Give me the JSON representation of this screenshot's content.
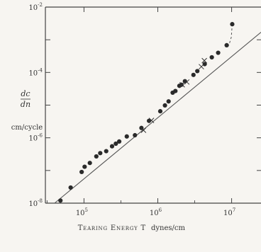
{
  "chart_data": {
    "type": "scatter",
    "x_scale": "log",
    "y_scale": "log",
    "xlim": [
      30000,
      25000000
    ],
    "ylim": [
      1e-08,
      0.01
    ],
    "x_ticks": [
      {
        "value": 100000,
        "base": "10",
        "exp": "5"
      },
      {
        "value": 1000000,
        "base": "10",
        "exp": "6"
      },
      {
        "value": 10000000,
        "base": "10",
        "exp": "7"
      }
    ],
    "y_ticks": [
      {
        "value": 0.01,
        "base": "10",
        "exp": "-2"
      },
      {
        "value": 0.0001,
        "base": "10",
        "exp": "-4"
      },
      {
        "value": 1e-06,
        "base": "10",
        "exp": "-6"
      },
      {
        "value": 1e-08,
        "base": "10",
        "exp": "-8"
      }
    ],
    "xlabel": "Tearing Energy T",
    "xlabel_units": "dynes/cm",
    "ylabel_top": "dc",
    "ylabel_bottom": "dn",
    "ylabel_units": "cm/cycle",
    "series": [
      {
        "marker": "filled-circle",
        "points": [
          [
            48000,
            1.2e-08
          ],
          [
            66000,
            3e-08
          ],
          [
            93000,
            9e-08
          ],
          [
            102000,
            1.3e-07
          ],
          [
            120000,
            1.7e-07
          ],
          [
            147000,
            2.7e-07
          ],
          [
            166000,
            3.4e-07
          ],
          [
            200000,
            3.9e-07
          ],
          [
            240000,
            5.5e-07
          ],
          [
            270000,
            6.6e-07
          ],
          [
            300000,
            7.7e-07
          ],
          [
            380000,
            1.1e-06
          ],
          [
            490000,
            1.2e-06
          ],
          [
            600000,
            2e-06
          ],
          [
            760000,
            3.3e-06
          ],
          [
            1080000,
            6.5e-06
          ],
          [
            1250000,
            9.8e-06
          ],
          [
            1400000,
            1.3e-05
          ],
          [
            1590000,
            2.4e-05
          ],
          [
            1730000,
            2.7e-05
          ],
          [
            1960000,
            3.9e-05
          ],
          [
            2090000,
            4.2e-05
          ],
          [
            2330000,
            5.4e-05
          ],
          [
            3040000,
            8.4e-05
          ],
          [
            3430000,
            0.00011
          ],
          [
            4320000,
            0.00018
          ],
          [
            5390000,
            0.00029
          ],
          [
            6570000,
            0.0004
          ],
          [
            8570000,
            0.00068
          ],
          [
            10190000,
            0.003
          ]
        ]
      },
      {
        "marker": "cross",
        "points": [
          [
            640000,
            1.7e-06
          ],
          [
            820000,
            3.4e-06
          ],
          [
            2140000,
            4.2e-05
          ],
          [
            2470000,
            5.1e-05
          ],
          [
            3890000,
            0.00015
          ],
          [
            4270000,
            0.00023
          ]
        ]
      }
    ],
    "fit_line": {
      "x": [
        40000,
        25000000
      ],
      "y": [
        1e-08,
        0.0017
      ]
    },
    "dashed_line": {
      "x": [
        10190000,
        9900000,
        9300000,
        9000000,
        8600000
      ],
      "y": [
        0.003,
        0.0012,
        0.00075,
        0.00065,
        0.00068
      ]
    }
  }
}
